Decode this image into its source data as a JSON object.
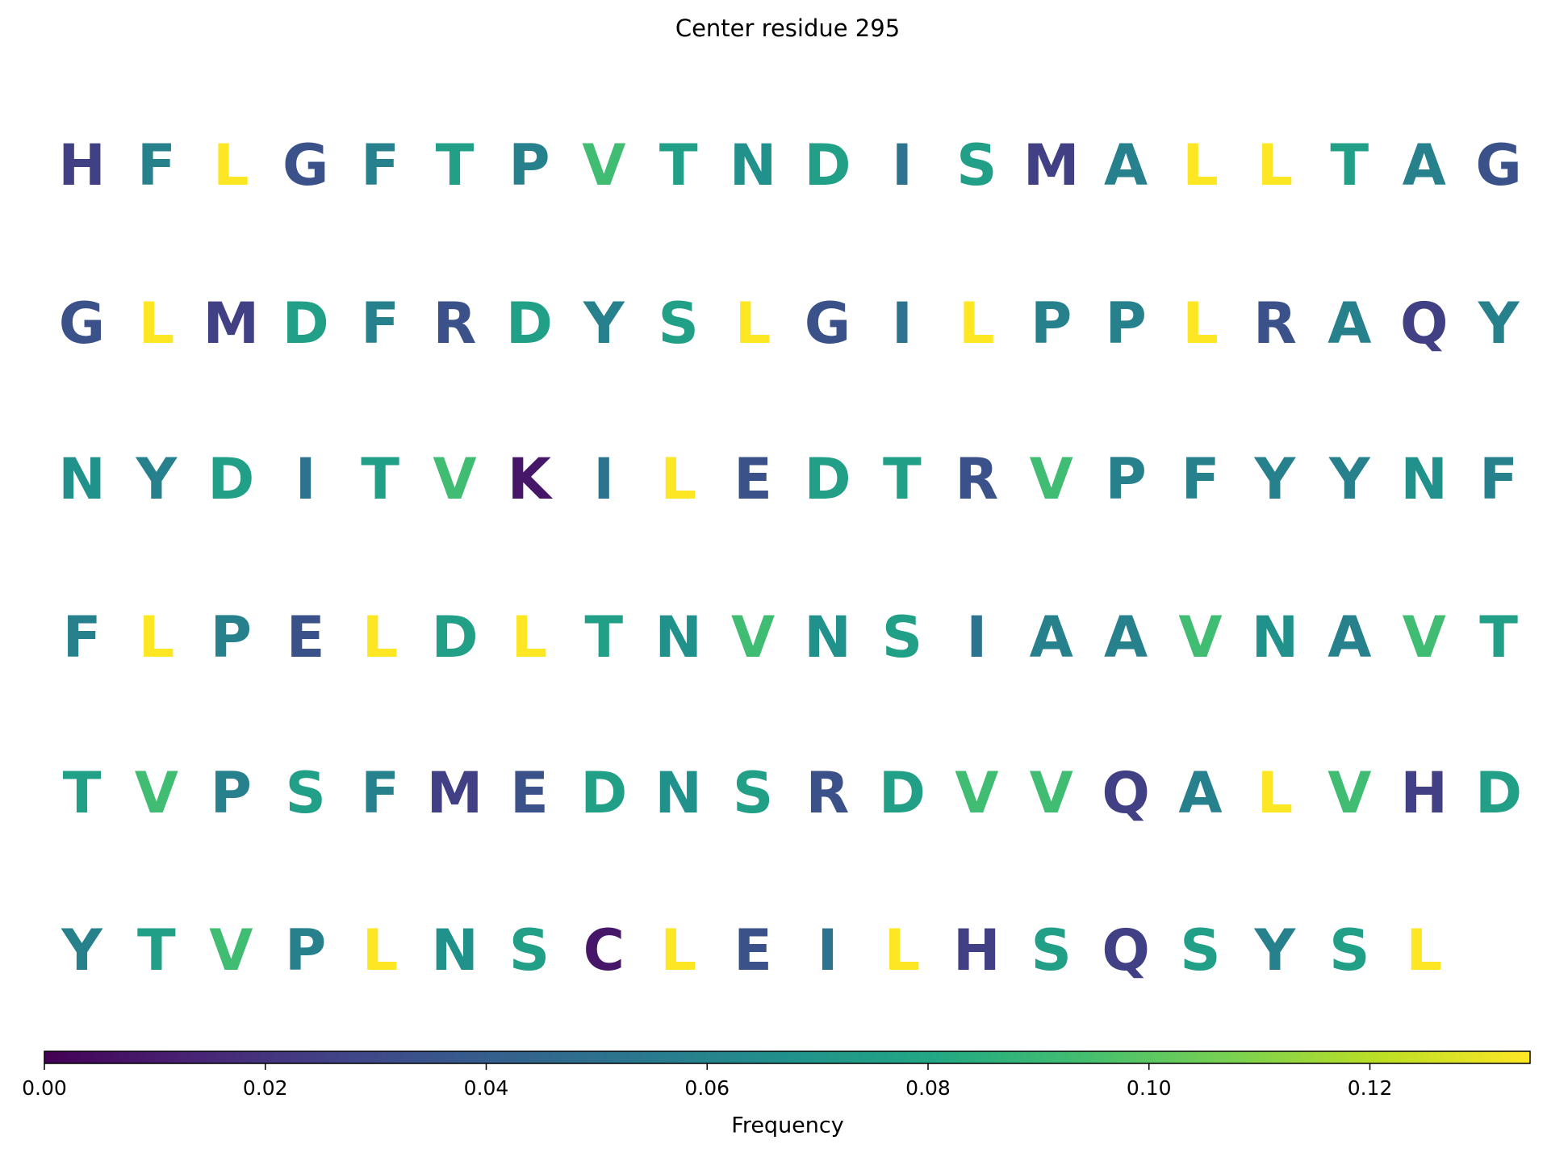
{
  "chart_data": {
    "type": "letter-grid",
    "title": "Center residue 295",
    "rows": [
      [
        "H",
        "F",
        "L",
        "G",
        "F",
        "T",
        "P",
        "V",
        "T",
        "N",
        "D",
        "I",
        "S",
        "M",
        "A",
        "L",
        "L",
        "T",
        "A",
        "G"
      ],
      [
        "G",
        "L",
        "M",
        "D",
        "F",
        "R",
        "D",
        "Y",
        "S",
        "L",
        "G",
        "I",
        "L",
        "P",
        "P",
        "L",
        "R",
        "A",
        "Q",
        "Y"
      ],
      [
        "N",
        "Y",
        "D",
        "I",
        "T",
        "V",
        "K",
        "I",
        "L",
        "E",
        "D",
        "T",
        "R",
        "V",
        "P",
        "F",
        "Y",
        "Y",
        "N",
        "F"
      ],
      [
        "F",
        "L",
        "P",
        "E",
        "L",
        "D",
        "L",
        "T",
        "N",
        "V",
        "N",
        "S",
        "I",
        "A",
        "A",
        "V",
        "N",
        "A",
        "V",
        "T"
      ],
      [
        "T",
        "V",
        "P",
        "S",
        "F",
        "M",
        "E",
        "D",
        "N",
        "S",
        "R",
        "D",
        "V",
        "V",
        "Q",
        "A",
        "L",
        "V",
        "H",
        "D"
      ],
      [
        "Y",
        "T",
        "V",
        "P",
        "L",
        "N",
        "S",
        "C",
        "L",
        "E",
        "I",
        "L",
        "H",
        "S",
        "Q",
        "S",
        "Y",
        "S",
        "L"
      ]
    ],
    "frequencies": {
      "H": 0.0252,
      "F": 0.0588,
      "L": 0.1345,
      "G": 0.0336,
      "T": 0.0756,
      "P": 0.0588,
      "V": 0.0924,
      "N": 0.0672,
      "D": 0.0756,
      "I": 0.0504,
      "S": 0.0756,
      "M": 0.0252,
      "A": 0.0588,
      "R": 0.0336,
      "Y": 0.0588,
      "Q": 0.0252,
      "K": 0.0084,
      "E": 0.0336,
      "C": 0.0084
    },
    "colormap": "viridis",
    "colorbar": {
      "label": "Frequency",
      "lim": [
        0,
        0.1345
      ],
      "ticks": [
        {
          "value": 0,
          "label": "0.00"
        },
        {
          "value": 0.02,
          "label": "0.02"
        },
        {
          "value": 0.04,
          "label": "0.04"
        },
        {
          "value": 0.06,
          "label": "0.06"
        },
        {
          "value": 0.08,
          "label": "0.08"
        },
        {
          "value": 0.1,
          "label": "0.10"
        },
        {
          "value": 0.12,
          "label": "0.12"
        }
      ]
    }
  }
}
